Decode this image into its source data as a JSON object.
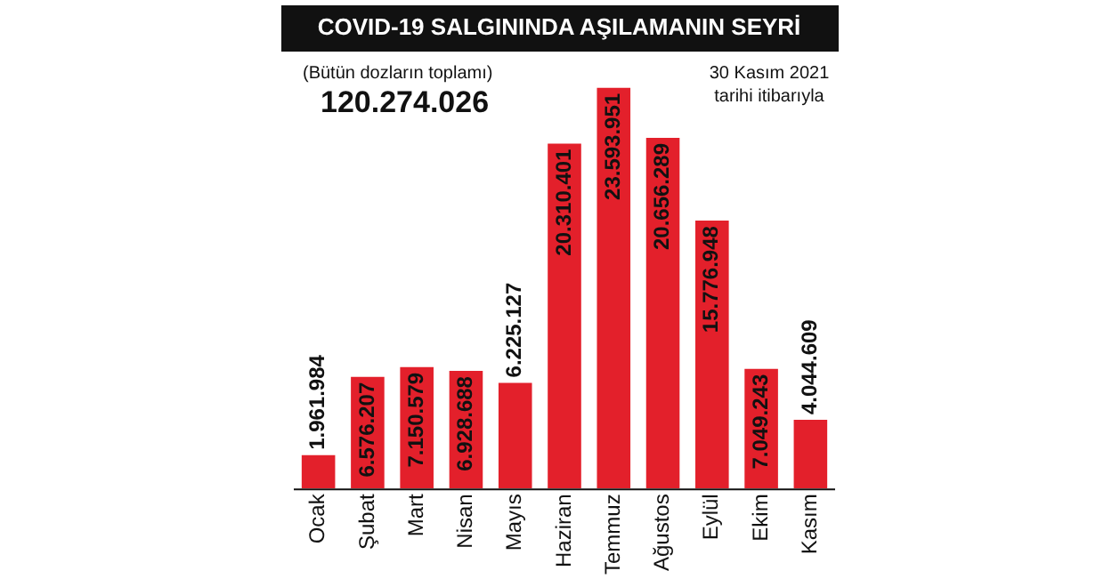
{
  "chart_data": {
    "type": "bar",
    "title": "COVID-19 SALGININDA AŞILAMANIN SEYRİ",
    "categories": [
      "Ocak",
      "Şubat",
      "Mart",
      "Nisan",
      "Mayıs",
      "Haziran",
      "Temmuz",
      "Ağustos",
      "Eylül",
      "Ekim",
      "Kasım"
    ],
    "values": [
      1961984,
      6576207,
      7150579,
      6928688,
      6225127,
      20310401,
      23593951,
      20656289,
      15776948,
      7049243,
      4044609
    ],
    "value_labels": [
      "1.961.984",
      "6.576.207",
      "7.150.579",
      "6.928.688",
      "6.225.127",
      "20.310.401",
      "23.593.951",
      "20.656.289",
      "15.776.948",
      "7.049.243",
      "4.044.609"
    ],
    "color": "#e3202b",
    "annotations": [
      "(Bütün dozların toplamı)",
      "120.274.026",
      "30 Kasım 2021\ntarihi itibarıyla"
    ],
    "grid": false,
    "legend": false
  }
}
